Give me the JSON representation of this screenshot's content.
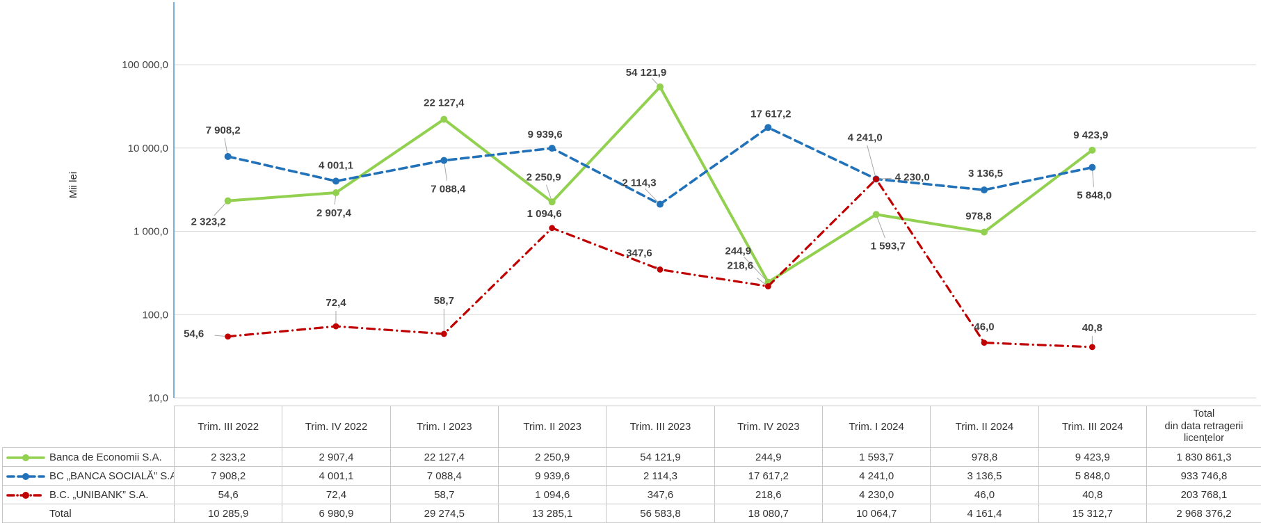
{
  "chart_data": {
    "type": "line",
    "title": "",
    "y_axis_title": "Mii lei",
    "y_scale": "log10",
    "ylim": [
      10,
      500000
    ],
    "grid": "horizontal",
    "legend_position": "table-left-column",
    "y_ticks": [
      {
        "value": 100000,
        "label": "100 000,0"
      },
      {
        "value": 10000,
        "label": "10 000,0"
      },
      {
        "value": 1000,
        "label": "1 000,0"
      },
      {
        "value": 100,
        "label": "100,0"
      },
      {
        "value": 10,
        "label": "10,0"
      }
    ],
    "categories": [
      "Trim. III 2022",
      "Trim. IV 2022",
      "Trim. I 2023",
      "Trim. II 2023",
      "Trim. III 2023",
      "Trim. IV 2023",
      "Trim. I 2024",
      "Trim. II 2024",
      "Trim. III 2024"
    ],
    "total_column_header_lines": [
      "Total",
      "din data retragerii",
      "licențelor"
    ],
    "series": [
      {
        "name": "Banca de Economii S.A.",
        "color": "#92D050",
        "line_style": "solid",
        "values": [
          2323.2,
          2907.4,
          22127.4,
          2250.9,
          54121.9,
          244.9,
          1593.7,
          978.8,
          9423.9
        ],
        "point_labels": [
          "2 323,2",
          "2 907,4",
          "22 127,4",
          "2 250,9",
          "54 121,9",
          "244,9",
          "1 593,7",
          "978,8",
          "9 423,9"
        ],
        "total": "1 830 861,3",
        "label_offsets": [
          [
            -28,
            30
          ],
          [
            -3,
            29
          ],
          [
            0,
            -24
          ],
          [
            -12,
            -36
          ],
          [
            -20,
            -21
          ],
          [
            -43,
            -45
          ],
          [
            17,
            45
          ],
          [
            -8,
            -23
          ],
          [
            -2,
            -22
          ]
        ]
      },
      {
        "name": "BC „BANCA SOCIALĂ” S.A.",
        "color": "#2272B9",
        "line_style": "dashed",
        "values": [
          7908.2,
          4001.1,
          7088.4,
          9939.6,
          2114.3,
          17617.2,
          4241.0,
          3136.5,
          5848.0
        ],
        "point_labels": [
          "7 908,2",
          "4 001,1",
          "7 088,4",
          "9 939,6",
          "2 114,3",
          "17 617,2",
          "4 241,0",
          "3 136,5",
          "5 848,0"
        ],
        "total": "933 746,8",
        "label_offsets": [
          [
            -7,
            -38
          ],
          [
            0,
            -23
          ],
          [
            6,
            41
          ],
          [
            -10,
            -20
          ],
          [
            -30,
            -31
          ],
          [
            4,
            -20
          ],
          [
            -16,
            -60
          ],
          [
            2,
            -24
          ],
          [
            3,
            40
          ]
        ]
      },
      {
        "name": "B.C. „UNIBANK” S.A.",
        "color": "#C00000",
        "line_style": "dash-dot",
        "values": [
          54.6,
          72.4,
          58.7,
          1094.6,
          347.6,
          218.6,
          4230.0,
          46.0,
          40.8
        ],
        "point_labels": [
          "54,6",
          "72,4",
          "58,7",
          "1 094,6",
          "347,6",
          "218,6",
          "4 230,0",
          "46,0",
          "40,8"
        ],
        "total": "203 768,1",
        "label_offsets": [
          [
            -49,
            -4
          ],
          [
            0,
            -34
          ],
          [
            0,
            -48
          ],
          [
            -11,
            -21
          ],
          [
            -30,
            -24
          ],
          [
            -40,
            -30
          ],
          [
            52,
            -3
          ],
          [
            0,
            -23
          ],
          [
            0,
            -28
          ]
        ]
      }
    ],
    "total_row": {
      "name": "Total",
      "cells": [
        "10 285,9",
        "6 980,9",
        "29 274,5",
        "13 285,1",
        "56 583,8",
        "18 080,7",
        "10 064,7",
        "4 161,4",
        "15 312,7"
      ],
      "total": "2 968 376,2"
    },
    "colors": {
      "axis_line": "#5B9BD5",
      "gridline": "#D9D9D9",
      "leader_line": "#A6A6A6",
      "label_text": "#3F3F3F",
      "table_border": "#C6C6C6"
    }
  }
}
